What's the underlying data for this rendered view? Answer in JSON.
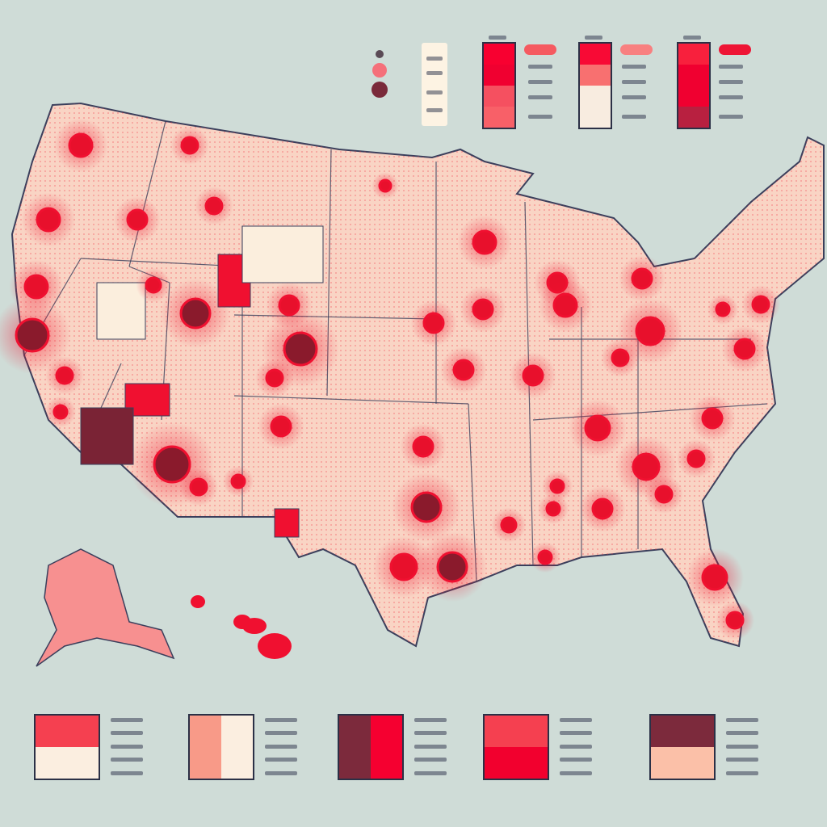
{
  "map": {
    "colors": {
      "background": "#cfdcd7",
      "land": "#f9d4c4",
      "border": "#3b3f5c",
      "hot": "#f0102d",
      "dark": "#7a2335",
      "cream": "#fbeedd"
    }
  },
  "legend_top": {
    "dots": [
      "#5a4a55",
      "#f5707a",
      "#7a2a3a"
    ],
    "ramps": [
      {
        "colors": [
          "#f80030",
          "#f00030",
          "#f55060",
          "#f86068"
        ],
        "pill": "#f55a60"
      },
      {
        "colors": [
          "#f80a35",
          "#f87070",
          "#f8ece0",
          "#f8ece0"
        ],
        "pill": "#f88080"
      },
      {
        "colors": [
          "#f8203d",
          "#f00030",
          "#f00030",
          "#b82040"
        ],
        "pill": "#ee1535"
      }
    ]
  },
  "legend_bottom": [
    {
      "orientation": "rows",
      "colors": [
        "#f54050",
        "#fbeee0"
      ]
    },
    {
      "orientation": "cols",
      "colors": [
        "#f89a88",
        "#fbeee0"
      ]
    },
    {
      "orientation": "cols",
      "colors": [
        "#7c2a3c",
        "#f50030"
      ]
    },
    {
      "orientation": "rows",
      "colors": [
        "#f54050",
        "#f2002e"
      ]
    },
    {
      "orientation": "rows",
      "colors": [
        "#7c2a3c",
        "#fbc0a8"
      ]
    }
  ]
}
